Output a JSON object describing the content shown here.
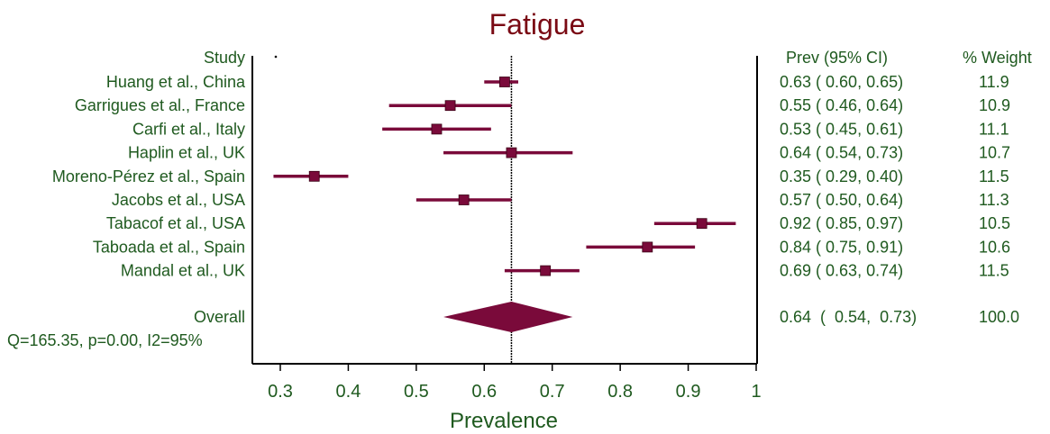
{
  "colors": {
    "text": "#1f5a1f",
    "title": "#7a0a14",
    "mark": "#7a0a3a",
    "axis": "#000000"
  },
  "chart_data": {
    "type": "forest",
    "title": "Fatigue",
    "xlabel": "Prevalence",
    "xlim": [
      0.3,
      1.0
    ],
    "xticks": [
      "0.3",
      "0.4",
      "0.5",
      "0.6",
      "0.7",
      "0.8",
      "0.9",
      "1"
    ],
    "header": {
      "study": "Study",
      "ci": "Prev (95% CI)",
      "weight": "% Weight"
    },
    "studies": [
      {
        "name": "Huang et al., China",
        "prev": 0.63,
        "lo": 0.6,
        "hi": 0.65,
        "weight": 11.9,
        "ci_text": "0.63  (  0.60,  0.65)",
        "weight_text": "11.9"
      },
      {
        "name": "Garrigues et al., France",
        "prev": 0.55,
        "lo": 0.46,
        "hi": 0.64,
        "weight": 10.9,
        "ci_text": "0.55  (  0.46,  0.64)",
        "weight_text": "10.9"
      },
      {
        "name": "Carfi et al., Italy",
        "prev": 0.53,
        "lo": 0.45,
        "hi": 0.61,
        "weight": 11.1,
        "ci_text": "0.53  (  0.45,  0.61)",
        "weight_text": "11.1"
      },
      {
        "name": "Haplin et al., UK",
        "prev": 0.64,
        "lo": 0.54,
        "hi": 0.73,
        "weight": 10.7,
        "ci_text": "0.64  (  0.54,  0.73)",
        "weight_text": "10.7"
      },
      {
        "name": "Moreno-Pérez et al., Spain",
        "prev": 0.35,
        "lo": 0.29,
        "hi": 0.4,
        "weight": 11.5,
        "ci_text": "0.35  (  0.29,  0.40)",
        "weight_text": "11.5"
      },
      {
        "name": "Jacobs et al., USA",
        "prev": 0.57,
        "lo": 0.5,
        "hi": 0.64,
        "weight": 11.3,
        "ci_text": "0.57  (  0.50,  0.64)",
        "weight_text": "11.3"
      },
      {
        "name": "Tabacof et al., USA",
        "prev": 0.92,
        "lo": 0.85,
        "hi": 0.97,
        "weight": 10.5,
        "ci_text": "0.92  (  0.85,  0.97)",
        "weight_text": "10.5"
      },
      {
        "name": "Taboada et al., Spain",
        "prev": 0.84,
        "lo": 0.75,
        "hi": 0.91,
        "weight": 10.6,
        "ci_text": "0.84  (  0.75,  0.91)",
        "weight_text": "10.6"
      },
      {
        "name": "Mandal et al., UK",
        "prev": 0.69,
        "lo": 0.63,
        "hi": 0.74,
        "weight": 11.5,
        "ci_text": "0.69  (  0.63,  0.74)",
        "weight_text": "11.5"
      }
    ],
    "overall": {
      "name": "Overall",
      "prev": 0.64,
      "lo": 0.54,
      "hi": 0.73,
      "weight": 100.0,
      "ci_text": "0.64  (  0.54,  0.73)",
      "weight_text": "100.0",
      "stats": "Q=165.35, p=0.00, I2=95%"
    }
  }
}
